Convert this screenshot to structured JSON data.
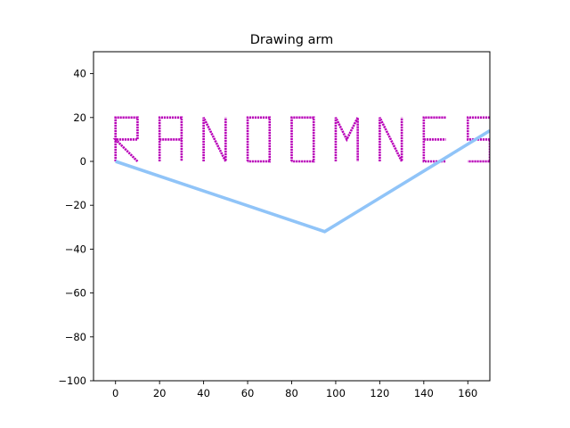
{
  "chart_data": {
    "type": "line",
    "title": "Drawing arm",
    "xlabel": "",
    "ylabel": "",
    "xlim": [
      -10,
      170
    ],
    "ylim": [
      -100,
      50
    ],
    "x_ticks": [
      0,
      20,
      40,
      60,
      80,
      100,
      120,
      140,
      160
    ],
    "y_ticks": [
      -100,
      -80,
      -60,
      -40,
      -20,
      0,
      20,
      40
    ],
    "grid": false,
    "legend": "none",
    "arm": {
      "color": "#90c4f8",
      "points": [
        [
          0,
          0
        ],
        [
          95,
          -32
        ],
        [
          170,
          14
        ]
      ]
    },
    "drawing": {
      "text": "RANDOMNESS",
      "color": "#b800b8",
      "letter_width": 10,
      "letter_height": 20,
      "letter_spacing": 20,
      "x_start": 0
    }
  }
}
